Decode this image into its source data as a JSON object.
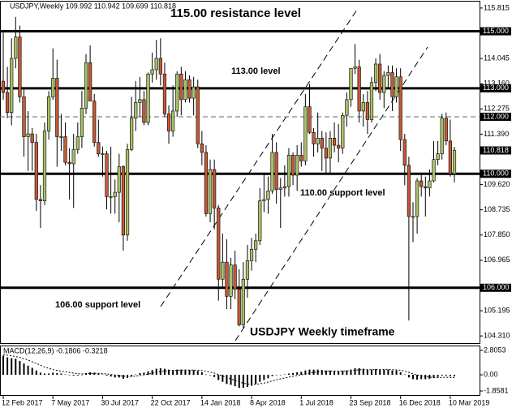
{
  "chart_data": [
    {
      "type": "candlestick",
      "title": "USDJPY,Weekly 109.992 110.942 109.699 110.818",
      "categories": [
        "12 Feb 2017",
        null,
        null,
        null,
        null,
        null,
        null,
        null,
        null,
        null,
        null,
        null,
        "7 May 2017",
        null,
        null,
        null,
        null,
        null,
        null,
        null,
        null,
        null,
        null,
        null,
        "30 Jul 2017",
        null,
        null,
        null,
        null,
        null,
        null,
        null,
        null,
        null,
        null,
        null,
        "22 Oct 2017",
        null,
        null,
        null,
        null,
        null,
        null,
        null,
        null,
        null,
        null,
        null,
        "14 Jan 2018",
        null,
        null,
        null,
        null,
        null,
        null,
        null,
        null,
        null,
        null,
        null,
        "8 Apr 2018",
        null,
        null,
        null,
        null,
        null,
        null,
        null,
        null,
        null,
        null,
        null,
        "1 Jul 2018",
        null,
        null,
        null,
        null,
        null,
        null,
        null,
        null,
        null,
        null,
        null,
        "23 Sep 2018",
        null,
        null,
        null,
        null,
        null,
        null,
        null,
        null,
        null,
        null,
        null,
        "16 Dec 2018",
        null,
        null,
        null,
        null,
        null,
        null,
        null,
        null,
        null,
        null,
        null,
        "10 Mar 2019",
        null
      ],
      "open": [
        113.25,
        112.85,
        112.15,
        114.05,
        114.8,
        112.7,
        111.3,
        111.4,
        111.1,
        109.1,
        109.05,
        111.5,
        112.7,
        113.35,
        111.3,
        111.3,
        110.4,
        110.35,
        110.85,
        111.3,
        112.3,
        113.9,
        112.55,
        111.1,
        110.7,
        110.7,
        109.2,
        109.2,
        109.35,
        110.25,
        107.85,
        110.85,
        111.95,
        112.5,
        112.6,
        111.8,
        113.5,
        113.65,
        114.05,
        113.5,
        112.1,
        111.5,
        112.2,
        113.5,
        112.6,
        113.3,
        112.65,
        113.05,
        111.05,
        110.75,
        108.6,
        110.15,
        108.8,
        106.3,
        106.9,
        105.7,
        106.8,
        105.95,
        104.7,
        106.3,
        106.95,
        107.35,
        107.65,
        109.05,
        109.1,
        109.4,
        110.75,
        109.45,
        109.5,
        109.55,
        110.65,
        109.95,
        110.65,
        110.45,
        112.35,
        111.45,
        111.05,
        111.25,
        110.9,
        110.55,
        111.25,
        111.0,
        110.9,
        112.05,
        112.6,
        113.7,
        113.75,
        112.2,
        112.5,
        111.9,
        113.2,
        113.85,
        112.85,
        113.45,
        113.55,
        112.7,
        113.4,
        111.2,
        110.3,
        108.5,
        108.5,
        109.75,
        109.55,
        109.5,
        109.75,
        110.5,
        110.7,
        111.95,
        111.15,
        109.992
      ],
      "high": [
        114.95,
        113.75,
        114.75,
        115.5,
        115.2,
        113.0,
        112.2,
        111.6,
        111.4,
        109.6,
        111.8,
        112.9,
        114.4,
        114.0,
        112.1,
        111.8,
        110.9,
        111.4,
        111.8,
        112.9,
        114.2,
        114.5,
        112.8,
        111.9,
        110.95,
        110.8,
        110.95,
        109.8,
        110.7,
        110.3,
        111.05,
        112.7,
        113.25,
        113.4,
        112.9,
        113.55,
        114.25,
        114.7,
        114.75,
        113.9,
        112.4,
        113.1,
        113.6,
        113.75,
        113.6,
        113.45,
        113.4,
        113.3,
        111.5,
        111.0,
        110.5,
        110.5,
        108.9,
        107.9,
        107.7,
        107.05,
        107.3,
        106.65,
        106.9,
        107.5,
        107.75,
        107.9,
        109.5,
        110.0,
        109.9,
        111.4,
        111.1,
        109.85,
        110.3,
        110.9,
        110.75,
        111.0,
        111.1,
        112.8,
        113.15,
        111.6,
        112.15,
        111.5,
        111.45,
        111.5,
        111.8,
        111.75,
        112.15,
        112.85,
        113.7,
        114.55,
        114.0,
        112.8,
        112.9,
        113.4,
        114.05,
        114.2,
        113.6,
        113.8,
        113.8,
        113.7,
        113.7,
        111.4,
        110.6,
        109.0,
        109.85,
        110.0,
        109.9,
        110.15,
        111.15,
        111.15,
        112.1,
        112.15,
        111.9,
        110.942
      ],
      "low": [
        112.6,
        111.95,
        111.7,
        113.7,
        112.5,
        110.6,
        110.1,
        110.1,
        108.7,
        108.1,
        108.9,
        111.2,
        112.6,
        110.25,
        110.8,
        110.3,
        109.1,
        108.8,
        110.7,
        110.9,
        112.1,
        112.6,
        110.95,
        110.6,
        109.9,
        108.75,
        108.6,
        108.6,
        108.3,
        107.3,
        107.65,
        110.8,
        111.5,
        112.0,
        111.7,
        111.7,
        113.2,
        113.3,
        113.1,
        112.0,
        111.05,
        111.3,
        112.0,
        112.05,
        112.5,
        112.5,
        112.05,
        110.9,
        110.3,
        108.5,
        108.3,
        108.05,
        105.55,
        106.05,
        105.25,
        105.25,
        105.6,
        104.65,
        104.6,
        105.65,
        106.6,
        106.9,
        107.5,
        108.65,
        108.6,
        109.3,
        108.95,
        108.1,
        109.2,
        109.2,
        109.6,
        109.4,
        110.25,
        110.3,
        111.4,
        110.6,
        110.75,
        110.1,
        110.0,
        110.0,
        110.75,
        110.4,
        110.7,
        111.65,
        112.35,
        113.5,
        111.8,
        111.65,
        111.4,
        111.8,
        112.9,
        112.6,
        112.3,
        113.0,
        112.2,
        112.5,
        110.8,
        109.6,
        104.85,
        107.6,
        107.9,
        109.2,
        108.5,
        109.2,
        109.7,
        110.3,
        110.5,
        111.0,
        109.9,
        109.699
      ],
      "close": [
        112.85,
        112.15,
        114.05,
        114.8,
        112.7,
        111.3,
        111.4,
        111.1,
        109.1,
        109.05,
        111.5,
        112.7,
        113.35,
        111.3,
        111.3,
        110.4,
        110.35,
        110.85,
        111.3,
        112.3,
        113.9,
        112.55,
        111.1,
        110.7,
        110.7,
        109.2,
        109.2,
        109.35,
        110.25,
        107.85,
        110.85,
        111.95,
        112.5,
        112.6,
        111.8,
        113.5,
        113.65,
        114.05,
        113.5,
        112.1,
        111.5,
        112.2,
        113.5,
        112.6,
        113.3,
        112.65,
        113.05,
        111.05,
        110.75,
        108.6,
        110.15,
        108.8,
        106.3,
        106.9,
        105.7,
        106.8,
        105.95,
        104.7,
        106.3,
        106.95,
        107.35,
        107.65,
        109.05,
        109.1,
        109.4,
        110.75,
        109.45,
        109.5,
        109.55,
        110.65,
        109.95,
        110.65,
        110.45,
        112.35,
        111.45,
        111.05,
        111.25,
        110.9,
        110.55,
        111.25,
        111.0,
        110.9,
        112.05,
        112.6,
        113.7,
        113.75,
        112.2,
        112.5,
        111.9,
        113.2,
        113.85,
        112.85,
        113.45,
        113.55,
        112.7,
        113.4,
        111.2,
        110.3,
        108.5,
        108.5,
        109.75,
        109.55,
        109.5,
        109.75,
        110.5,
        110.7,
        111.95,
        111.15,
        109.99,
        110.818
      ],
      "up_color": "#a9c267",
      "down_color": "#c35a35",
      "ylim": [
        104.03,
        116.04
      ],
      "yticks": [
        115.815,
        114.045,
        {
          "value": 113.16,
          "label": "113.160"
        },
        112.275,
        {
          "value": 111.39,
          "label": "111.390"
        },
        {
          "value": 109.62,
          "label": "109.620"
        },
        108.735,
        {
          "value": 107.85,
          "label": "107.850"
        },
        106.965,
        105.195,
        {
          "value": 104.31,
          "label": "104.310"
        }
      ],
      "levels": [
        {
          "value": 115,
          "label": "115.000",
          "style": "solid"
        },
        {
          "value": 113,
          "label": "113.000",
          "style": "solid"
        },
        {
          "value": 112,
          "label": "112.000",
          "style": "dashed"
        },
        {
          "value": 110,
          "label": "110.000",
          "style": "solid"
        },
        {
          "value": 106,
          "label": "106.000",
          "style": "solid"
        }
      ],
      "current_price": {
        "value": 110.818,
        "label": "110.818"
      },
      "annotations": [
        "115.00 resistance level",
        "113.00 level",
        "110.00 support level",
        "106.00 support level",
        "USDJPY Weekly timeframe"
      ]
    },
    {
      "type": "macd",
      "title": "MACD(12,26,9) -0.1806 -0.3218",
      "values": [
        2.2,
        2.0,
        1.9,
        1.85,
        1.6,
        1.3,
        1.05,
        0.8,
        0.5,
        0.25,
        0.15,
        0.15,
        0.25,
        0.2,
        0.15,
        0.05,
        -0.05,
        -0.1,
        -0.08,
        0.02,
        0.2,
        0.3,
        0.25,
        0.15,
        0.05,
        -0.1,
        -0.2,
        -0.3,
        -0.3,
        -0.45,
        -0.35,
        -0.15,
        0.05,
        0.2,
        0.25,
        0.4,
        0.55,
        0.7,
        0.75,
        0.7,
        0.6,
        0.55,
        0.6,
        0.6,
        0.6,
        0.55,
        0.55,
        0.45,
        0.3,
        0.05,
        -0.05,
        -0.25,
        -0.6,
        -0.8,
        -1.05,
        -1.15,
        -1.3,
        -1.5,
        -1.5,
        -1.4,
        -1.25,
        -1.05,
        -0.8,
        -0.6,
        -0.4,
        -0.15,
        -0.05,
        0.0,
        0.05,
        0.15,
        0.2,
        0.3,
        0.35,
        0.5,
        0.6,
        0.6,
        0.6,
        0.55,
        0.5,
        0.5,
        0.45,
        0.4,
        0.45,
        0.5,
        0.6,
        0.75,
        0.75,
        0.7,
        0.6,
        0.6,
        0.65,
        0.6,
        0.6,
        0.6,
        0.5,
        0.5,
        0.3,
        0.05,
        -0.3,
        -0.5,
        -0.55,
        -0.5,
        -0.5,
        -0.45,
        -0.35,
        -0.25,
        -0.1,
        -0.1,
        -0.15,
        -0.1806
      ],
      "signal": [
        2.3,
        2.25,
        2.2,
        2.1,
        2.0,
        1.85,
        1.7,
        1.5,
        1.3,
        1.1,
        0.9,
        0.75,
        0.6,
        0.5,
        0.42,
        0.35,
        0.27,
        0.2,
        0.14,
        0.1,
        0.12,
        0.15,
        0.17,
        0.17,
        0.15,
        0.1,
        0.04,
        -0.03,
        -0.09,
        -0.16,
        -0.2,
        -0.2,
        -0.15,
        -0.08,
        0.0,
        0.08,
        0.17,
        0.28,
        0.37,
        0.44,
        0.48,
        0.5,
        0.52,
        0.54,
        0.55,
        0.55,
        0.55,
        0.53,
        0.49,
        0.41,
        0.32,
        0.2,
        0.04,
        -0.13,
        -0.32,
        -0.49,
        -0.65,
        -0.82,
        -0.96,
        -1.05,
        -1.09,
        -1.08,
        -1.03,
        -0.94,
        -0.83,
        -0.7,
        -0.57,
        -0.46,
        -0.36,
        -0.26,
        -0.17,
        -0.08,
        0.0,
        0.1,
        0.2,
        0.28,
        0.34,
        0.39,
        0.41,
        0.43,
        0.44,
        0.43,
        0.44,
        0.45,
        0.48,
        0.53,
        0.58,
        0.6,
        0.6,
        0.6,
        0.61,
        0.61,
        0.61,
        0.61,
        0.59,
        0.57,
        0.52,
        0.42,
        0.28,
        0.12,
        -0.01,
        -0.12,
        -0.2,
        -0.26,
        -0.3,
        -0.32,
        -0.3,
        -0.28,
        -0.3,
        -0.3218
      ],
      "color": "#000000",
      "ylim": [
        -2.32,
        3.27
      ],
      "yticks": [
        2.8053,
        {
          "value": 0,
          "label": "0.00"
        },
        -1.8581
      ]
    }
  ]
}
